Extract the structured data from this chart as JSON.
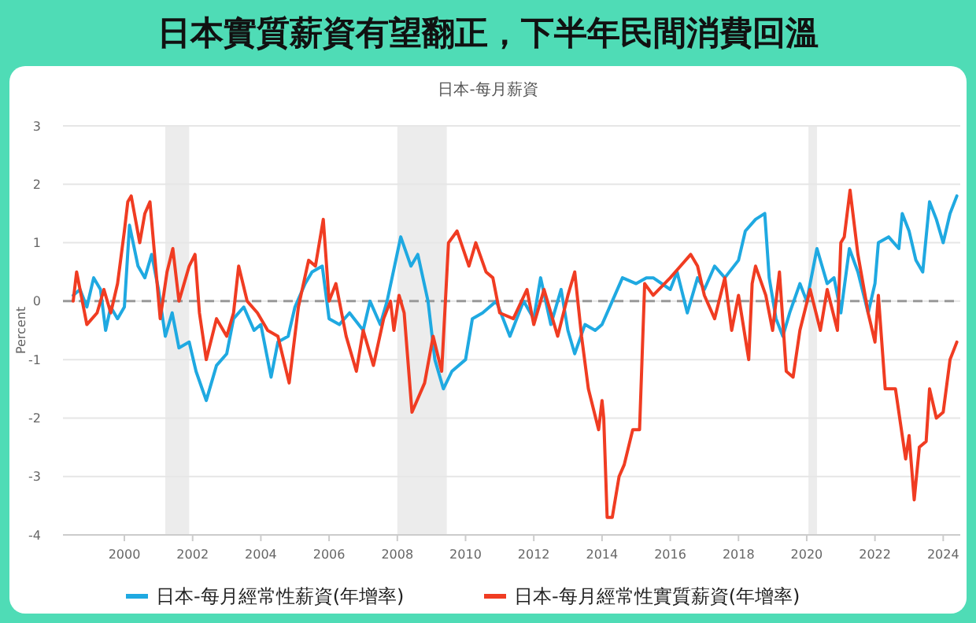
{
  "chart_data": {
    "type": "line",
    "title": "日本實質薪資有望翻正，下半年民間消費回溫",
    "subtitle": "日本-每月薪資",
    "ylabel": "Percent",
    "xlim": [
      1998.2,
      2024.5
    ],
    "xticks": [
      {
        "value": 2000,
        "label": "2000"
      },
      {
        "value": 2002,
        "label": "2002"
      },
      {
        "value": 2004,
        "label": "2004"
      },
      {
        "value": 2006,
        "label": "2006"
      },
      {
        "value": 2008,
        "label": "2008"
      },
      {
        "value": 2010,
        "label": "2010"
      },
      {
        "value": 2012,
        "label": "2012"
      },
      {
        "value": 2014,
        "label": "2014"
      },
      {
        "value": 2016,
        "label": "2016"
      },
      {
        "value": 2018,
        "label": "2018"
      },
      {
        "value": 2020,
        "label": "2020"
      },
      {
        "value": 2022,
        "label": "2022"
      },
      {
        "value": 2024,
        "label": "2024"
      }
    ],
    "ylim": [
      -4,
      3
    ],
    "yticks": [
      -4,
      -3,
      -2,
      -1,
      0,
      1,
      2,
      3
    ],
    "grid": "y",
    "legend": "bottom",
    "marker": "none",
    "line_style": "solid",
    "ref_lines": [
      {
        "axis": "y",
        "value": 0,
        "color": "#999999",
        "line_style": "dashed"
      }
    ],
    "bands": [
      {
        "axis": "x",
        "from": 2001.2,
        "to": 2001.9,
        "color": "#ececec"
      },
      {
        "axis": "x",
        "from": 2008.0,
        "to": 2009.45,
        "color": "#ececec"
      },
      {
        "axis": "x",
        "from": 2020.05,
        "to": 2020.3,
        "color": "#ececec"
      }
    ],
    "series": [
      {
        "name": "日本-每月經常性薪資(年增率)",
        "color": "#1fa9e1",
        "x": [
          1998.5,
          1998.7,
          1998.9,
          1999.1,
          1999.3,
          1999.45,
          1999.6,
          1999.8,
          2000.0,
          2000.15,
          2000.4,
          2000.6,
          2000.8,
          2001.0,
          2001.2,
          2001.4,
          2001.6,
          2001.9,
          2002.1,
          2002.4,
          2002.7,
          2003.0,
          2003.2,
          2003.5,
          2003.8,
          2004.0,
          2004.3,
          2004.5,
          2004.8,
          2005.0,
          2005.3,
          2005.5,
          2005.8,
          2006.0,
          2006.3,
          2006.6,
          2007.0,
          2007.2,
          2007.5,
          2007.7,
          2008.1,
          2008.4,
          2008.6,
          2008.9,
          2009.1,
          2009.35,
          2009.6,
          2010.0,
          2010.2,
          2010.5,
          2010.9,
          2011.3,
          2011.7,
          2012.0,
          2012.2,
          2012.5,
          2012.8,
          2013.0,
          2013.2,
          2013.5,
          2013.8,
          2014.0,
          2014.3,
          2014.6,
          2015.0,
          2015.3,
          2015.5,
          2016.0,
          2016.2,
          2016.5,
          2016.8,
          2017.0,
          2017.3,
          2017.6,
          2018.0,
          2018.2,
          2018.5,
          2018.77,
          2018.9,
          2019.1,
          2019.3,
          2019.5,
          2019.8,
          2020.0,
          2020.3,
          2020.6,
          2020.8,
          2021.0,
          2021.25,
          2021.5,
          2021.8,
          2022.0,
          2022.1,
          2022.4,
          2022.7,
          2022.8,
          2023.0,
          2023.2,
          2023.4,
          2023.6,
          2023.8,
          2024.0,
          2024.2,
          2024.4
        ],
        "values": [
          0.1,
          0.2,
          -0.1,
          0.4,
          0.2,
          -0.5,
          -0.1,
          -0.3,
          -0.1,
          1.3,
          0.6,
          0.4,
          0.8,
          0.2,
          -0.6,
          -0.2,
          -0.8,
          -0.7,
          -1.2,
          -1.7,
          -1.1,
          -0.9,
          -0.3,
          -0.1,
          -0.5,
          -0.4,
          -1.3,
          -0.7,
          -0.6,
          -0.1,
          0.3,
          0.5,
          0.6,
          -0.3,
          -0.4,
          -0.2,
          -0.5,
          0.0,
          -0.4,
          0.0,
          1.1,
          0.6,
          0.8,
          0.0,
          -1.0,
          -1.5,
          -1.2,
          -1.0,
          -0.3,
          -0.2,
          0.0,
          -0.6,
          0.0,
          -0.3,
          0.4,
          -0.4,
          0.2,
          -0.5,
          -0.9,
          -0.4,
          -0.5,
          -0.4,
          0.0,
          0.4,
          0.3,
          0.4,
          0.4,
          0.2,
          0.5,
          -0.2,
          0.4,
          0.2,
          0.6,
          0.4,
          0.7,
          1.2,
          1.4,
          1.5,
          0.4,
          -0.3,
          -0.6,
          -0.2,
          0.3,
          0.0,
          0.9,
          0.3,
          0.4,
          -0.2,
          0.9,
          0.5,
          -0.2,
          0.3,
          1.0,
          1.1,
          0.9,
          1.5,
          1.2,
          0.7,
          0.5,
          1.7,
          1.4,
          1.0,
          1.5,
          1.8
        ]
      },
      {
        "name": "日本-每月經常性實質薪資(年增率)",
        "color": "#f03c22",
        "x": [
          1998.5,
          1998.6,
          1998.9,
          1999.2,
          1999.4,
          1999.6,
          1999.8,
          2000.0,
          2000.1,
          2000.2,
          2000.45,
          2000.6,
          2000.75,
          2001.05,
          2001.25,
          2001.42,
          2001.6,
          2001.9,
          2002.07,
          2002.2,
          2002.4,
          2002.7,
          2003.0,
          2003.2,
          2003.35,
          2003.6,
          2003.9,
          2004.2,
          2004.5,
          2004.83,
          2005.1,
          2005.4,
          2005.6,
          2005.83,
          2006.0,
          2006.2,
          2006.5,
          2006.8,
          2007.0,
          2007.3,
          2007.6,
          2007.8,
          2007.9,
          2008.05,
          2008.2,
          2008.43,
          2008.8,
          2009.05,
          2009.3,
          2009.5,
          2009.75,
          2010.1,
          2010.3,
          2010.6,
          2010.8,
          2011.0,
          2011.4,
          2011.8,
          2012.0,
          2012.3,
          2012.7,
          2013.0,
          2013.2,
          2013.4,
          2013.6,
          2013.9,
          2014.0,
          2014.05,
          2014.15,
          2014.3,
          2014.5,
          2014.65,
          2014.9,
          2015.1,
          2015.25,
          2015.5,
          2016.0,
          2016.3,
          2016.6,
          2016.8,
          2017.0,
          2017.3,
          2017.6,
          2017.8,
          2018.0,
          2018.3,
          2018.4,
          2018.5,
          2018.8,
          2019.0,
          2019.2,
          2019.4,
          2019.6,
          2019.8,
          2020.1,
          2020.4,
          2020.6,
          2020.9,
          2021.0,
          2021.1,
          2021.27,
          2021.5,
          2021.8,
          2022.0,
          2022.1,
          2022.3,
          2022.6,
          2022.9,
          2023.0,
          2023.15,
          2023.3,
          2023.5,
          2023.6,
          2023.8,
          2024.0,
          2024.2,
          2024.4
        ],
        "values": [
          0.0,
          0.5,
          -0.4,
          -0.2,
          0.2,
          -0.2,
          0.3,
          1.2,
          1.7,
          1.8,
          1.0,
          1.5,
          1.7,
          -0.3,
          0.5,
          0.9,
          0.0,
          0.6,
          0.8,
          -0.2,
          -1.0,
          -0.3,
          -0.6,
          -0.2,
          0.6,
          0.0,
          -0.2,
          -0.5,
          -0.6,
          -1.4,
          -0.1,
          0.7,
          0.6,
          1.4,
          0.0,
          0.3,
          -0.6,
          -1.2,
          -0.5,
          -1.1,
          -0.3,
          0.0,
          -0.5,
          0.1,
          -0.2,
          -1.9,
          -1.4,
          -0.6,
          -1.2,
          1.0,
          1.2,
          0.6,
          1.0,
          0.5,
          0.4,
          -0.2,
          -0.3,
          0.2,
          -0.4,
          0.2,
          -0.6,
          0.1,
          0.5,
          -0.6,
          -1.5,
          -2.2,
          -1.7,
          -2.0,
          -3.7,
          -3.7,
          -3.0,
          -2.8,
          -2.2,
          -2.2,
          0.3,
          0.1,
          0.4,
          0.6,
          0.8,
          0.6,
          0.1,
          -0.3,
          0.4,
          -0.5,
          0.1,
          -1.0,
          0.3,
          0.6,
          0.1,
          -0.5,
          0.5,
          -1.2,
          -1.3,
          -0.5,
          0.2,
          -0.5,
          0.2,
          -0.5,
          1.0,
          1.1,
          1.9,
          0.8,
          -0.2,
          -0.7,
          0.1,
          -1.5,
          -1.5,
          -2.7,
          -2.3,
          -3.4,
          -2.5,
          -2.4,
          -1.5,
          -2.0,
          -1.9,
          -1.0,
          -0.7
        ]
      }
    ]
  }
}
